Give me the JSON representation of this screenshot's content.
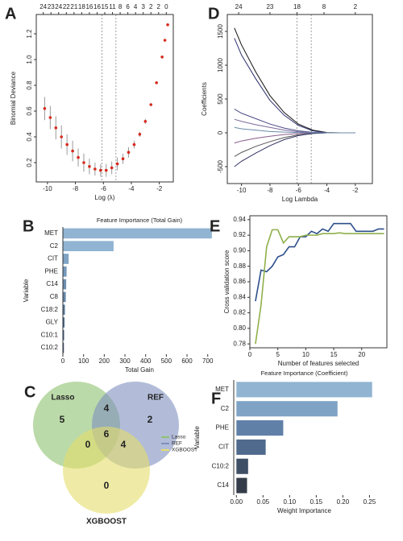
{
  "chart_data": [
    {
      "type": "errorbar",
      "label": "A",
      "x_label": "Log (λ)",
      "y_label": "Binomial Deviance",
      "x": [
        -10.2,
        -9.8,
        -9.4,
        -9.0,
        -8.6,
        -8.2,
        -7.8,
        -7.4,
        -7.0,
        -6.6,
        -6.2,
        -5.8,
        -5.4,
        -5.0,
        -4.6,
        -4.2,
        -3.8,
        -3.4,
        -3.0,
        -2.6,
        -2.2,
        -1.8,
        -1.6,
        -1.4
      ],
      "values": [
        0.62,
        0.55,
        0.47,
        0.4,
        0.34,
        0.29,
        0.24,
        0.2,
        0.17,
        0.15,
        0.14,
        0.14,
        0.16,
        0.19,
        0.23,
        0.28,
        0.34,
        0.42,
        0.52,
        0.65,
        0.82,
        1.02,
        1.15,
        1.27
      ],
      "errors": [
        0.09,
        0.09,
        0.09,
        0.09,
        0.08,
        0.08,
        0.07,
        0.07,
        0.06,
        0.05,
        0.05,
        0.05,
        0.05,
        0.05,
        0.04,
        0.04,
        0.03,
        0.02,
        0.02,
        0.01,
        0.01,
        0.01,
        0.01,
        0.01
      ],
      "color": "#d62a1e",
      "error_color": "#9a9a9a",
      "xlim": [
        -10.8,
        -1.0
      ],
      "ylim": [
        0.05,
        1.35
      ],
      "xticks": [
        -10,
        -8,
        -6,
        -4,
        -2
      ],
      "yticks": [
        0.2,
        0.4,
        0.6,
        0.8,
        {
          "value": 1,
          "label": "1.0"
        },
        1.2
      ],
      "top_ticks": [
        {
          "value": -10.3,
          "label": "24"
        },
        {
          "value": -9.75,
          "label": "23"
        },
        {
          "value": -9.2,
          "label": "24"
        },
        {
          "value": -8.65,
          "label": "22"
        },
        {
          "value": -8.1,
          "label": "21"
        },
        {
          "value": -7.55,
          "label": "18"
        },
        {
          "value": -7.0,
          "label": "16"
        },
        {
          "value": -6.45,
          "label": "16"
        },
        {
          "value": -5.9,
          "label": "15"
        },
        {
          "value": -5.35,
          "label": "11"
        },
        {
          "value": -4.8,
          "label": "8"
        },
        {
          "value": -4.25,
          "label": "6"
        },
        {
          "value": -3.7,
          "label": "4"
        },
        {
          "value": -3.15,
          "label": "3"
        },
        {
          "value": -2.6,
          "label": "2"
        },
        {
          "value": -2.05,
          "label": "2"
        },
        {
          "value": -1.5,
          "label": "0"
        }
      ],
      "vlines": [
        -6.1,
        -5.1
      ]
    },
    {
      "type": "line",
      "label": "D",
      "x_label": "Log Lambda",
      "y_label": "Coefficients",
      "x": [
        -10.5,
        -10,
        -9,
        -8,
        -7,
        -6,
        -5,
        -4,
        -3,
        -2
      ],
      "series": [
        {
          "color": "#111111",
          "values": [
            1550,
            1300,
            900,
            550,
            300,
            130,
            40,
            5,
            0,
            0
          ]
        },
        {
          "color": "#2b2f6b",
          "values": [
            1400,
            1150,
            800,
            480,
            260,
            110,
            30,
            0,
            0,
            0
          ]
        },
        {
          "color": "#4a4a8a",
          "values": [
            350,
            290,
            210,
            130,
            70,
            30,
            8,
            0,
            0,
            0
          ]
        },
        {
          "color": "#7a6a9a",
          "values": [
            200,
            170,
            120,
            80,
            40,
            15,
            3,
            0,
            0,
            0
          ]
        },
        {
          "color": "#8a5a8a",
          "values": [
            -150,
            -120,
            -80,
            -50,
            -25,
            -10,
            -2,
            0,
            0,
            0
          ]
        },
        {
          "color": "#555555",
          "values": [
            -350,
            -290,
            -200,
            -130,
            -70,
            -30,
            -8,
            0,
            0,
            0
          ]
        },
        {
          "color": "#333366",
          "values": [
            -500,
            -420,
            -300,
            -190,
            -100,
            -40,
            -10,
            0,
            0,
            0
          ]
        },
        {
          "color": "#6a8aaa",
          "values": [
            80,
            60,
            40,
            20,
            10,
            5,
            1,
            0,
            0,
            0
          ]
        }
      ],
      "xlim": [
        -11,
        -0.8
      ],
      "ylim": [
        -750,
        1750
      ],
      "xticks": [
        -10,
        -8,
        -6,
        -4,
        -2
      ],
      "yticks": [
        -500,
        0,
        500,
        1000,
        1500
      ],
      "top_ticks": [
        {
          "value": -10.2,
          "label": "24"
        },
        {
          "value": -8.0,
          "label": "23"
        },
        {
          "value": -6.1,
          "label": "18"
        },
        {
          "value": -4.2,
          "label": "8"
        },
        {
          "value": -2.0,
          "label": "2"
        }
      ],
      "vlines": [
        -6.1,
        -5.1
      ]
    },
    {
      "type": "barh",
      "label": "B",
      "title": "Feature Importance (Total Gain)",
      "x_label": "Total Gain",
      "y_label": "Variable",
      "categories": [
        "MET",
        "C2",
        "CIT",
        "PHE",
        "C14",
        "C8",
        "C18:2",
        "GLY",
        "C10:1",
        "C10:2"
      ],
      "values": [
        720,
        245,
        28,
        18,
        16,
        14,
        10,
        8,
        6,
        5
      ],
      "colors": [
        "#90b4d2",
        "#90b4d2",
        "#7fa3c4",
        "#7598ba",
        "#6d8fb1",
        "#6686a8",
        "#5a7a9c",
        "#4f6d8f",
        "#445f80",
        "#3b5272"
      ],
      "xlim": [
        0,
        740
      ],
      "xticks": [
        0,
        100,
        200,
        300,
        400,
        500,
        600,
        700
      ]
    },
    {
      "type": "line",
      "label": "E",
      "x_label": "Number of features selected",
      "y_label": "Cross validation score",
      "x": [
        1,
        2,
        3,
        4,
        5,
        6,
        7,
        8,
        9,
        10,
        11,
        12,
        13,
        14,
        15,
        16,
        17,
        18,
        19,
        20,
        21,
        22,
        23,
        24
      ],
      "series": [
        {
          "color": "#2c4f8a",
          "values": [
            0.835,
            0.875,
            0.873,
            0.88,
            0.892,
            0.895,
            0.905,
            0.905,
            0.918,
            0.918,
            0.925,
            0.922,
            0.928,
            0.925,
            0.935,
            0.935,
            0.935,
            0.935,
            0.925,
            0.925,
            0.925,
            0.925,
            0.928,
            0.928
          ]
        },
        {
          "color": "#8fb04a",
          "values": [
            0.78,
            0.83,
            0.905,
            0.927,
            0.927,
            0.91,
            0.918,
            0.918,
            0.918,
            0.92,
            0.92,
            0.92,
            0.922,
            0.922,
            0.922,
            0.923,
            0.922,
            0.922,
            0.922,
            0.922,
            0.922,
            0.922,
            0.922,
            0.922
          ]
        }
      ],
      "xlim": [
        0,
        24.5
      ],
      "ylim": [
        0.775,
        0.945
      ],
      "xticks": [
        0,
        5,
        10,
        15,
        20
      ],
      "yticks": [
        0.78,
        {
          "value": 0.8,
          "label": "0.80"
        },
        0.82,
        0.84,
        0.86,
        0.88,
        {
          "value": 0.9,
          "label": "0.90"
        },
        0.92,
        0.94
      ]
    },
    {
      "type": "venn",
      "label": "C",
      "sets": [
        {
          "name": "Lasso",
          "color": "#8dc26f"
        },
        {
          "name": "REF",
          "color": "#7f8fc0"
        },
        {
          "name": "XGBOOST",
          "color": "#e4dd6a"
        }
      ],
      "regions": {
        "lasso_only": 5,
        "ref_only": 2,
        "xgboost_only": 0,
        "lasso_ref": 4,
        "lasso_xgboost": 0,
        "ref_xgboost": 4,
        "all": 6
      }
    },
    {
      "type": "barh",
      "label": "F",
      "title": "Feature Importance (Coefficient)",
      "x_label": "Weight Importance",
      "y_label": "Variable",
      "categories": [
        "MET",
        "C2",
        "PHE",
        "CIT",
        "C10:2",
        "C14"
      ],
      "values": [
        0.255,
        0.19,
        0.088,
        0.055,
        0.022,
        0.02
      ],
      "colors": [
        "#90b4d2",
        "#7fa3c4",
        "#6080a8",
        "#4f6a8c",
        "#3e4f66",
        "#333c48"
      ],
      "xlim": [
        -0.005,
        0.26
      ],
      "xticks": [
        {
          "value": 0,
          "label": "0.00"
        },
        0.05,
        {
          "value": 0.1,
          "label": "0.10"
        },
        0.15,
        {
          "value": 0.2,
          "label": "0.20"
        },
        0.25
      ]
    }
  ]
}
